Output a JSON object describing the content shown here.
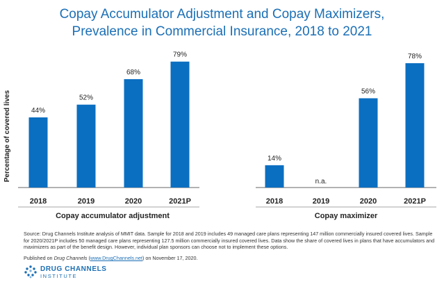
{
  "title_lines": [
    "Copay Accumulator Adjustment and Copay Maximizers,",
    "Prevalence in Commercial Insurance, 2018 to 2021"
  ],
  "chart_data": {
    "type": "bar",
    "ylabel": "Percentage of covered lives",
    "ylim": [
      0,
      100
    ],
    "color": "#0b6fc1",
    "groups": [
      {
        "name": "Copay accumulator adjustment",
        "categories": [
          "2018",
          "2019",
          "2020",
          "2021P"
        ],
        "values": [
          44,
          52,
          68,
          79
        ],
        "labels": [
          "44%",
          "52%",
          "68%",
          "79%"
        ]
      },
      {
        "name": "Copay maximizer",
        "categories": [
          "2018",
          "2019",
          "2020",
          "2021P"
        ],
        "values": [
          14,
          null,
          56,
          78
        ],
        "labels": [
          "14%",
          "n.a.",
          "56%",
          "78%"
        ]
      }
    ]
  },
  "footer": {
    "source": "Source: Drug Channels Institute analysis of MMIT data. Sample for 2018 and 2019 includes 49 managed care plans representing 147 million commercially insured covered lives. Sample for 2020/2021P includes 50 managed care plans representing 127.5 million commercially insured covered lives. Data show the share of covered lives in plans that have accumulators and maximizers as part of the benefit design. However, individual plan sponsors can choose not to implement these options.",
    "published_prefix": "Published on ",
    "published_outlet": "Drug Channels",
    "published_open": " (",
    "published_link": "www.DrugChannels.net",
    "published_suffix": ") on November 17, 2020."
  },
  "logo": {
    "line1": "DRUG CHANNELS",
    "line2": "INSTITUTE"
  }
}
